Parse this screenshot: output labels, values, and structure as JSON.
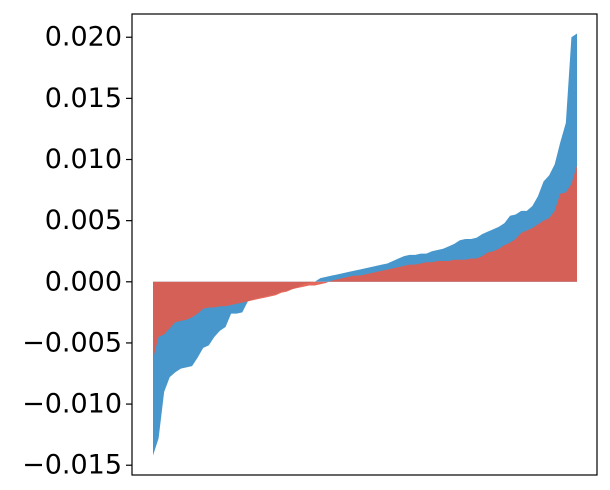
{
  "chart_data": {
    "type": "area",
    "title": "",
    "xlabel": "",
    "ylabel": "",
    "ylim": [
      -0.0158,
      0.0219
    ],
    "yticks": [
      0.02,
      0.015,
      0.01,
      0.005,
      0.0,
      -0.005,
      -0.01,
      -0.015
    ],
    "ytick_labels": [
      "0.020",
      "0.015",
      "0.010",
      "0.005",
      "0.000",
      "−0.005",
      "−0.010",
      "−0.015"
    ],
    "xticks_visible": false,
    "grid": false,
    "legend": "none",
    "series": [
      {
        "color": "#3a8fc8",
        "values": [
          -0.0142,
          -0.0128,
          -0.009,
          -0.0078,
          -0.0074,
          -0.0071,
          -0.007,
          -0.0069,
          -0.0062,
          -0.0054,
          -0.0052,
          -0.0045,
          -0.004,
          -0.0037,
          -0.0026,
          -0.0026,
          -0.0025,
          -0.0016,
          -0.0014,
          -0.0013,
          -0.0012,
          -0.0011,
          -0.001,
          -0.0008,
          -0.0007,
          -0.0006,
          -0.0004,
          -0.0002,
          -0.0001,
          0.0,
          0.0003,
          0.0004,
          0.0005,
          0.0006,
          0.0007,
          0.0008,
          0.0009,
          0.001,
          0.0011,
          0.0012,
          0.0013,
          0.0014,
          0.0015,
          0.0017,
          0.0019,
          0.0021,
          0.0022,
          0.0022,
          0.0023,
          0.0023,
          0.0025,
          0.0026,
          0.0027,
          0.0029,
          0.0031,
          0.0034,
          0.0035,
          0.0035,
          0.0036,
          0.0039,
          0.0041,
          0.0043,
          0.0045,
          0.0048,
          0.0054,
          0.0055,
          0.0058,
          0.0058,
          0.0062,
          0.007,
          0.0082,
          0.0087,
          0.0096,
          0.0114,
          0.013,
          0.02,
          0.0203
        ]
      },
      {
        "color": "#e35a4a",
        "values": [
          -0.0063,
          -0.0045,
          -0.0043,
          -0.0038,
          -0.0033,
          -0.0032,
          -0.0031,
          -0.0029,
          -0.0026,
          -0.0022,
          -0.0021,
          -0.0021,
          -0.002,
          -0.002,
          -0.0019,
          -0.0018,
          -0.0017,
          -0.0016,
          -0.0015,
          -0.0014,
          -0.0013,
          -0.0012,
          -0.0011,
          -0.0009,
          -0.0008,
          -0.0006,
          -0.0005,
          -0.0004,
          -0.0003,
          -0.0003,
          -0.0002,
          -0.0001,
          0.0001,
          0.0002,
          0.0003,
          0.0004,
          0.0005,
          0.0005,
          0.0006,
          0.0007,
          0.0008,
          0.0009,
          0.001,
          0.0011,
          0.0012,
          0.0013,
          0.0014,
          0.0014,
          0.0015,
          0.0016,
          0.0016,
          0.0017,
          0.0017,
          0.0017,
          0.0018,
          0.0018,
          0.0018,
          0.0019,
          0.0019,
          0.0021,
          0.0024,
          0.0025,
          0.0027,
          0.003,
          0.0032,
          0.0035,
          0.004,
          0.0042,
          0.0044,
          0.0047,
          0.005,
          0.0052,
          0.0058,
          0.0072,
          0.0073,
          0.008,
          0.0095
        ]
      }
    ]
  }
}
